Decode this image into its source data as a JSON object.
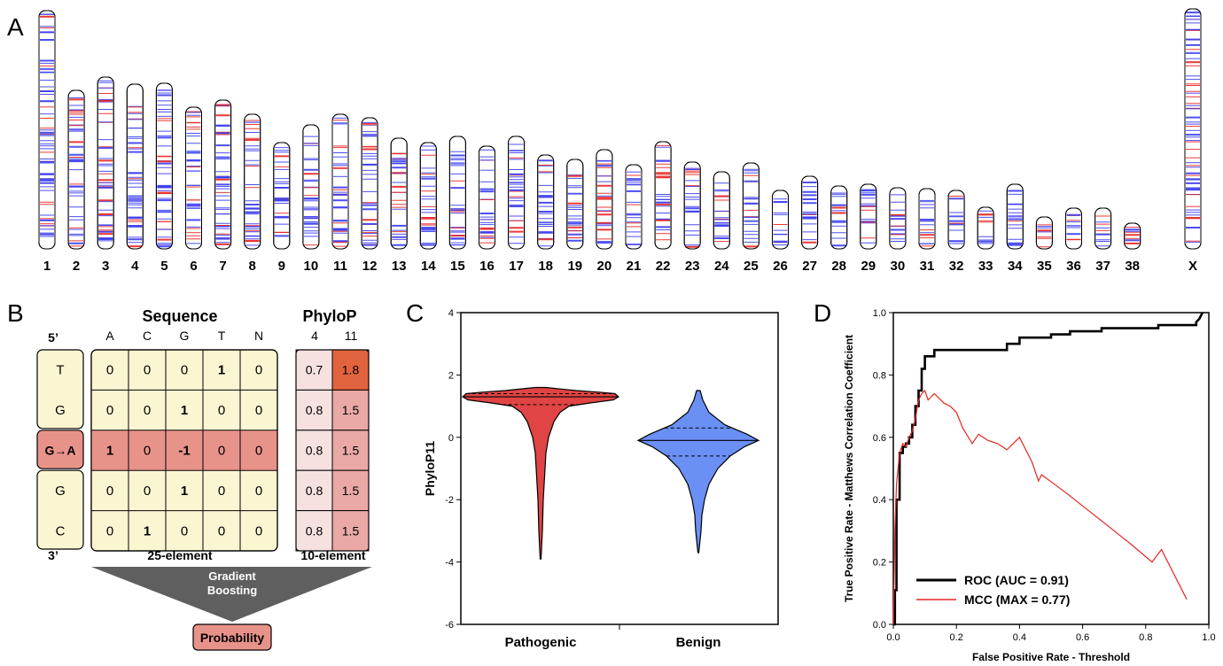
{
  "colors": {
    "pathogenic_band": "#e52521",
    "benign_band": "#3a3cf0",
    "cell_yellow": "#fbf6d2",
    "cell_red": "#e8938a",
    "phylo_light": "#f6e0e0",
    "phylo_mid": "#eaa9a5",
    "phylo_dark": "#e2643e",
    "violin_pathogenic": "#e04444",
    "violin_benign": "#6a8ff5",
    "roc_line": "#000000",
    "mcc_line": "#e52521",
    "triangle": "#5f5f5f"
  },
  "panel_a": {
    "label": "A",
    "chromosomes": [
      "1",
      "2",
      "3",
      "4",
      "5",
      "6",
      "7",
      "8",
      "9",
      "10",
      "11",
      "12",
      "13",
      "14",
      "15",
      "16",
      "17",
      "18",
      "19",
      "20",
      "21",
      "22",
      "23",
      "24",
      "25",
      "26",
      "27",
      "28",
      "29",
      "30",
      "31",
      "32",
      "33",
      "34",
      "35",
      "36",
      "37",
      "38",
      "X"
    ]
  },
  "panel_b": {
    "label": "B",
    "sequence_header": "Sequence",
    "phylop_header": "PhyloP",
    "five_prime": "5’",
    "three_prime": "3’",
    "bases": [
      "A",
      "C",
      "G",
      "T",
      "N"
    ],
    "phylop_cols": [
      "4",
      "11"
    ],
    "rows": [
      {
        "nuc": "T",
        "onehot": [
          "0",
          "0",
          "0",
          "1",
          "0"
        ],
        "phylo": [
          "0.7",
          "1.8"
        ]
      },
      {
        "nuc": "G",
        "onehot": [
          "0",
          "0",
          "1",
          "0",
          "0"
        ],
        "phylo": [
          "0.8",
          "1.5"
        ]
      },
      {
        "nuc": "G→A",
        "onehot": [
          "1",
          "0",
          "-1",
          "0",
          "0"
        ],
        "phylo": [
          "0.8",
          "1.5"
        ]
      },
      {
        "nuc": "G",
        "onehot": [
          "0",
          "0",
          "1",
          "0",
          "0"
        ],
        "phylo": [
          "0.8",
          "1.5"
        ]
      },
      {
        "nuc": "C",
        "onehot": [
          "0",
          "1",
          "0",
          "0",
          "0"
        ],
        "phylo": [
          "0.8",
          "1.5"
        ]
      }
    ],
    "seq_footer": "25-element",
    "phylo_footer": "10-element",
    "model_line1": "Gradient",
    "model_line2": "Boosting",
    "output": "Probability"
  },
  "chart_data": [
    {
      "type": "violin",
      "panel": "C",
      "ylabel": "PhyloP11",
      "ylim": [
        -6,
        4
      ],
      "yticks": [
        "4",
        "2",
        "0",
        "-2",
        "-4",
        "-6"
      ],
      "categories": [
        "Pathogenic",
        "Benign"
      ],
      "series": [
        {
          "name": "Pathogenic",
          "min": -3.9,
          "max": 1.6,
          "median": 1.3,
          "q1": 1.05,
          "q3": 1.4
        },
        {
          "name": "Benign",
          "min": -3.7,
          "max": 1.5,
          "median": -0.1,
          "q1": -0.6,
          "q3": 0.3
        }
      ]
    },
    {
      "type": "line",
      "panel": "D",
      "xlabel": "False Positive Rate - Threshold",
      "ylabel": "True Positive Rate - Matthews Correlation Coefficient",
      "xlim": [
        0,
        1
      ],
      "ylim": [
        0,
        1
      ],
      "xticks": [
        "0.0",
        "0.2",
        "0.4",
        "0.6",
        "0.8",
        "1.0"
      ],
      "yticks": [
        "1.0",
        "0.8",
        "0.6",
        "0.4",
        "0.2",
        "0.0"
      ],
      "series": [
        {
          "name": "ROC (AUC = 0.91)",
          "x": [
            0,
            0.005,
            0.005,
            0.01,
            0.01,
            0.02,
            0.02,
            0.03,
            0.03,
            0.04,
            0.04,
            0.05,
            0.05,
            0.06,
            0.06,
            0.07,
            0.07,
            0.08,
            0.08,
            0.09,
            0.09,
            0.1,
            0.1,
            0.13,
            0.13,
            0.36,
            0.36,
            0.4,
            0.4,
            0.5,
            0.5,
            0.56,
            0.56,
            0.66,
            0.66,
            0.84,
            0.84,
            0.96,
            0.96,
            0.97,
            0.98
          ],
          "y": [
            0,
            0,
            0.11,
            0.11,
            0.4,
            0.4,
            0.55,
            0.55,
            0.57,
            0.57,
            0.58,
            0.58,
            0.6,
            0.6,
            0.64,
            0.64,
            0.7,
            0.7,
            0.75,
            0.75,
            0.82,
            0.82,
            0.86,
            0.86,
            0.88,
            0.88,
            0.9,
            0.9,
            0.92,
            0.92,
            0.93,
            0.93,
            0.94,
            0.94,
            0.95,
            0.95,
            0.96,
            0.96,
            0.97,
            0.98,
            1.0
          ]
        },
        {
          "name": "MCC (MAX = 0.77)",
          "x": [
            0,
            0.005,
            0.01,
            0.02,
            0.03,
            0.04,
            0.05,
            0.06,
            0.07,
            0.08,
            0.09,
            0.1,
            0.11,
            0.12,
            0.13,
            0.16,
            0.18,
            0.2,
            0.22,
            0.25,
            0.27,
            0.3,
            0.33,
            0.36,
            0.4,
            0.44,
            0.46,
            0.47,
            0.55,
            0.65,
            0.75,
            0.82,
            0.85,
            0.93
          ],
          "y": [
            0,
            0.3,
            0.45,
            0.55,
            0.58,
            0.57,
            0.6,
            0.62,
            0.66,
            0.72,
            0.74,
            0.75,
            0.72,
            0.73,
            0.74,
            0.71,
            0.7,
            0.68,
            0.63,
            0.58,
            0.61,
            0.59,
            0.58,
            0.56,
            0.6,
            0.52,
            0.46,
            0.48,
            0.42,
            0.34,
            0.26,
            0.2,
            0.24,
            0.08
          ]
        }
      ]
    }
  ],
  "panel_c_label": "C",
  "panel_d_label": "D"
}
